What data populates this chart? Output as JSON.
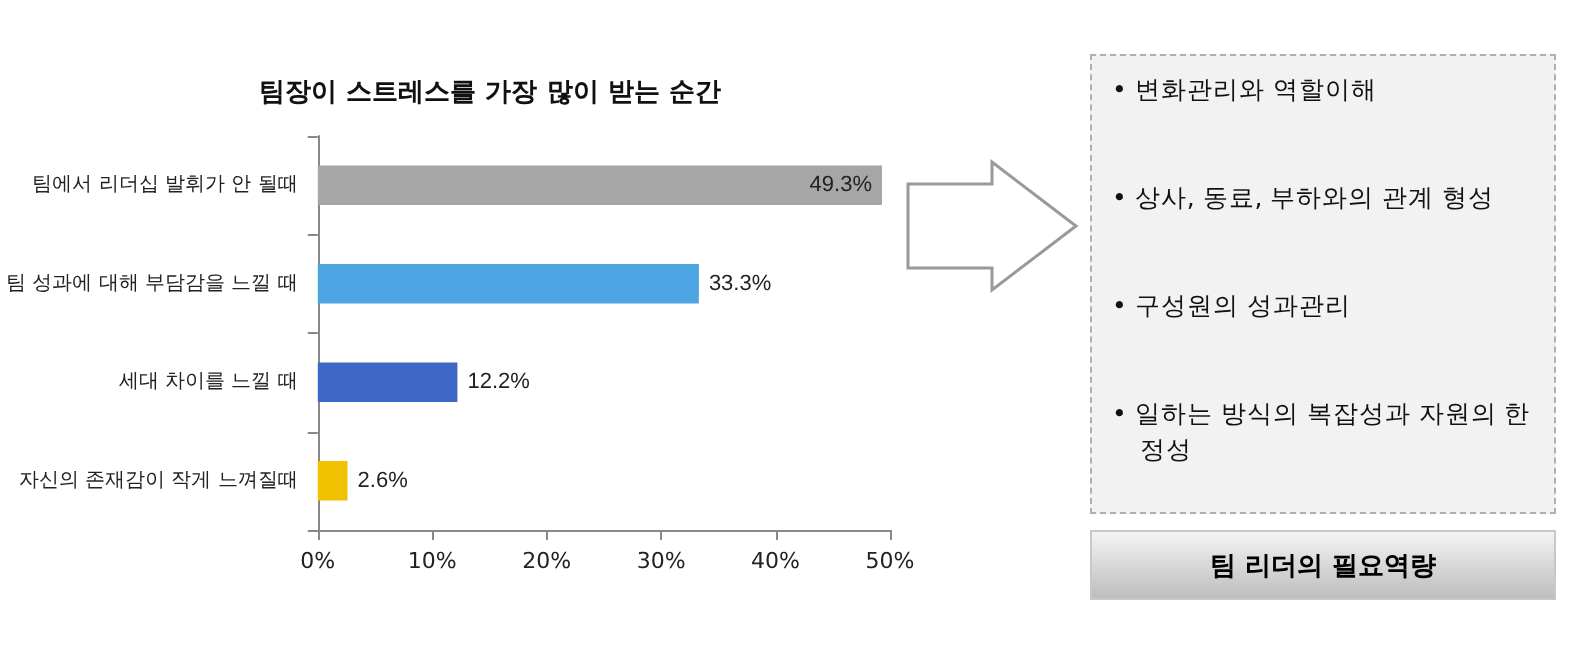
{
  "chart_data": {
    "type": "bar",
    "orientation": "horizontal",
    "title": "팀장이 스트레스를 가장 많이 받는 순간",
    "categories": [
      "팀에서 리더십 발휘가 안 될때",
      "팀 성과에 대해 부담감을 느낄 때",
      "세대 차이를 느낄 때",
      "자신의 존재감이 작게 느껴질때"
    ],
    "values": [
      49.3,
      33.3,
      12.2,
      2.6
    ],
    "colors": [
      "#a6a6a6",
      "#4da6e3",
      "#3d68c6",
      "#f2c200"
    ],
    "value_labels": [
      "49.3%",
      "33.3%",
      "12.2%",
      "2.6%"
    ],
    "xlim": [
      0,
      50
    ],
    "xticks": [
      {
        "value": 0,
        "label": "0%"
      },
      {
        "value": 10,
        "label": "10%"
      },
      {
        "value": 20,
        "label": "20%"
      },
      {
        "value": 30,
        "label": "30%"
      },
      {
        "value": 40,
        "label": "40%"
      },
      {
        "value": 50,
        "label": "50%"
      }
    ],
    "grid": false,
    "annotations": [
      "• 변화관리와 역할이해",
      "• 상사, 동료, 부하와의 관계 형성",
      "• 구성원의 성과관리",
      "• 일하는 방식의 복잡성과 자원의 한정성",
      "팀 리더의 필요역량"
    ]
  }
}
